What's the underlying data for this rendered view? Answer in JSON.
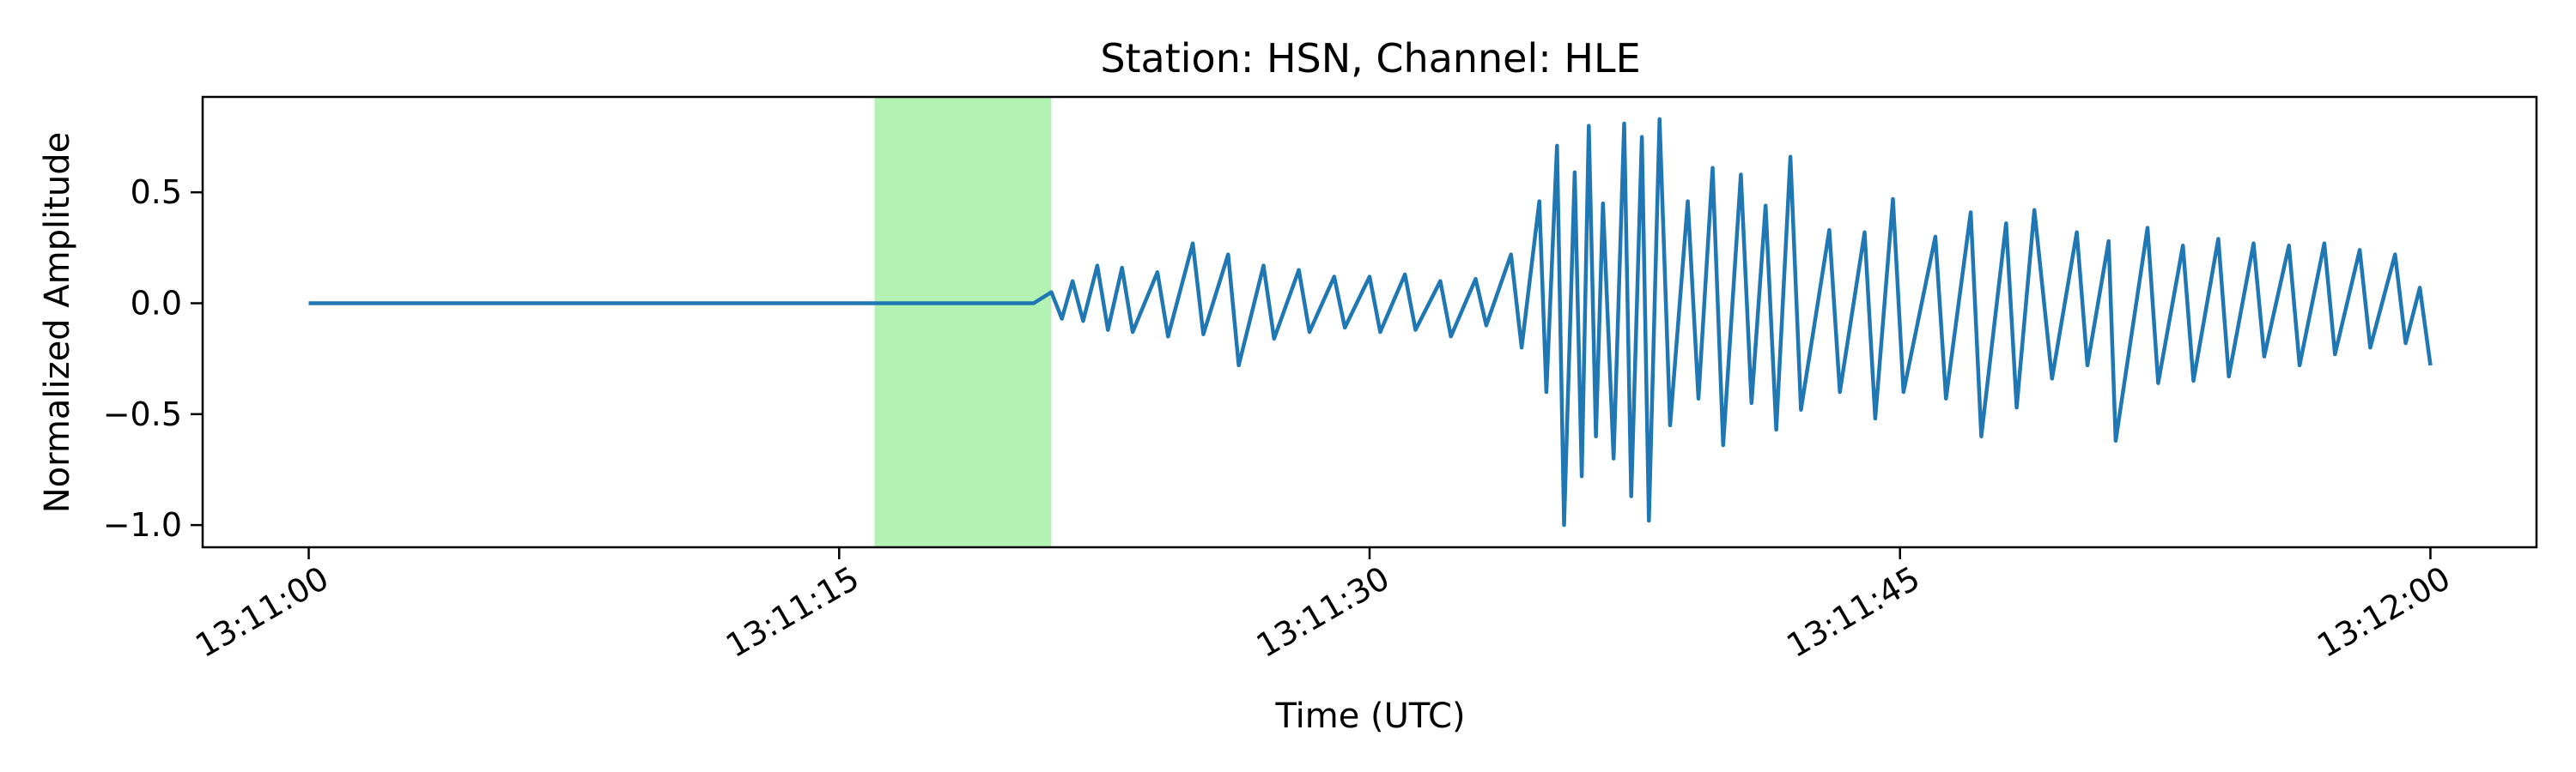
{
  "chart_data": {
    "type": "line",
    "title": "Station: HSN, Channel: HLE",
    "xlabel": "Time (UTC)",
    "ylabel": "Normalized Amplitude",
    "x_unit": "seconds after 13:11:00 UTC",
    "xlim": [
      -3,
      63
    ],
    "ylim": [
      -1.1,
      0.93
    ],
    "x_ticks": [
      0,
      15,
      30,
      45,
      60
    ],
    "x_tick_labels": [
      "13:11:00",
      "13:11:15",
      "13:11:30",
      "13:11:45",
      "13:12:00"
    ],
    "y_ticks": [
      0.5,
      0.0,
      -0.5,
      -1.0
    ],
    "y_tick_labels": [
      "0.5",
      "0.0",
      "−0.5",
      "−1.0"
    ],
    "highlight_span": {
      "x_start": 16.0,
      "x_end": 21.0,
      "color": "#b2f2b2"
    },
    "grid": false,
    "legend": "none",
    "colors": {
      "series": "#1f77b4",
      "highlight": "#b2f2b2"
    },
    "series": [
      {
        "color": "#1f77b4",
        "points": [
          [
            0,
            0.0
          ],
          [
            10.0,
            0.0
          ],
          [
            20.5,
            0.0
          ],
          [
            21.0,
            0.05
          ],
          [
            21.3,
            -0.07
          ],
          [
            21.6,
            0.1
          ],
          [
            21.9,
            -0.08
          ],
          [
            22.3,
            0.17
          ],
          [
            22.6,
            -0.12
          ],
          [
            23.0,
            0.16
          ],
          [
            23.3,
            -0.13
          ],
          [
            24.0,
            0.14
          ],
          [
            24.3,
            -0.15
          ],
          [
            25.0,
            0.27
          ],
          [
            25.3,
            -0.14
          ],
          [
            26.0,
            0.22
          ],
          [
            26.3,
            -0.28
          ],
          [
            27.0,
            0.17
          ],
          [
            27.3,
            -0.16
          ],
          [
            28.0,
            0.15
          ],
          [
            28.3,
            -0.13
          ],
          [
            29.0,
            0.12
          ],
          [
            29.3,
            -0.11
          ],
          [
            30.0,
            0.12
          ],
          [
            30.3,
            -0.13
          ],
          [
            31.0,
            0.13
          ],
          [
            31.3,
            -0.12
          ],
          [
            32.0,
            0.1
          ],
          [
            32.3,
            -0.15
          ],
          [
            33.0,
            0.11
          ],
          [
            33.3,
            -0.1
          ],
          [
            34.0,
            0.22
          ],
          [
            34.3,
            -0.2
          ],
          [
            34.8,
            0.46
          ],
          [
            35.0,
            -0.4
          ],
          [
            35.3,
            0.71
          ],
          [
            35.5,
            -1.0
          ],
          [
            35.8,
            0.59
          ],
          [
            36.0,
            -0.78
          ],
          [
            36.2,
            0.8
          ],
          [
            36.4,
            -0.6
          ],
          [
            36.6,
            0.45
          ],
          [
            36.9,
            -0.7
          ],
          [
            37.2,
            0.81
          ],
          [
            37.4,
            -0.87
          ],
          [
            37.7,
            0.75
          ],
          [
            37.9,
            -0.98
          ],
          [
            38.2,
            0.83
          ],
          [
            38.5,
            -0.55
          ],
          [
            39.0,
            0.46
          ],
          [
            39.3,
            -0.43
          ],
          [
            39.7,
            0.61
          ],
          [
            40.0,
            -0.64
          ],
          [
            40.5,
            0.58
          ],
          [
            40.8,
            -0.45
          ],
          [
            41.2,
            0.44
          ],
          [
            41.5,
            -0.57
          ],
          [
            41.9,
            0.66
          ],
          [
            42.2,
            -0.48
          ],
          [
            43.0,
            0.33
          ],
          [
            43.3,
            -0.4
          ],
          [
            44.0,
            0.32
          ],
          [
            44.3,
            -0.52
          ],
          [
            44.8,
            0.47
          ],
          [
            45.1,
            -0.4
          ],
          [
            46.0,
            0.3
          ],
          [
            46.3,
            -0.43
          ],
          [
            47.0,
            0.41
          ],
          [
            47.3,
            -0.6
          ],
          [
            48.0,
            0.36
          ],
          [
            48.3,
            -0.47
          ],
          [
            48.8,
            0.42
          ],
          [
            49.3,
            -0.34
          ],
          [
            50.0,
            0.32
          ],
          [
            50.3,
            -0.28
          ],
          [
            50.9,
            0.28
          ],
          [
            51.1,
            -0.62
          ],
          [
            52.0,
            0.34
          ],
          [
            52.3,
            -0.36
          ],
          [
            53.0,
            0.26
          ],
          [
            53.3,
            -0.35
          ],
          [
            54.0,
            0.29
          ],
          [
            54.3,
            -0.33
          ],
          [
            55.0,
            0.27
          ],
          [
            55.3,
            -0.24
          ],
          [
            56.0,
            0.26
          ],
          [
            56.3,
            -0.28
          ],
          [
            57.0,
            0.27
          ],
          [
            57.3,
            -0.23
          ],
          [
            58.0,
            0.24
          ],
          [
            58.3,
            -0.2
          ],
          [
            59.0,
            0.22
          ],
          [
            59.3,
            -0.18
          ],
          [
            59.7,
            0.07
          ],
          [
            60.0,
            -0.28
          ]
        ]
      }
    ]
  }
}
